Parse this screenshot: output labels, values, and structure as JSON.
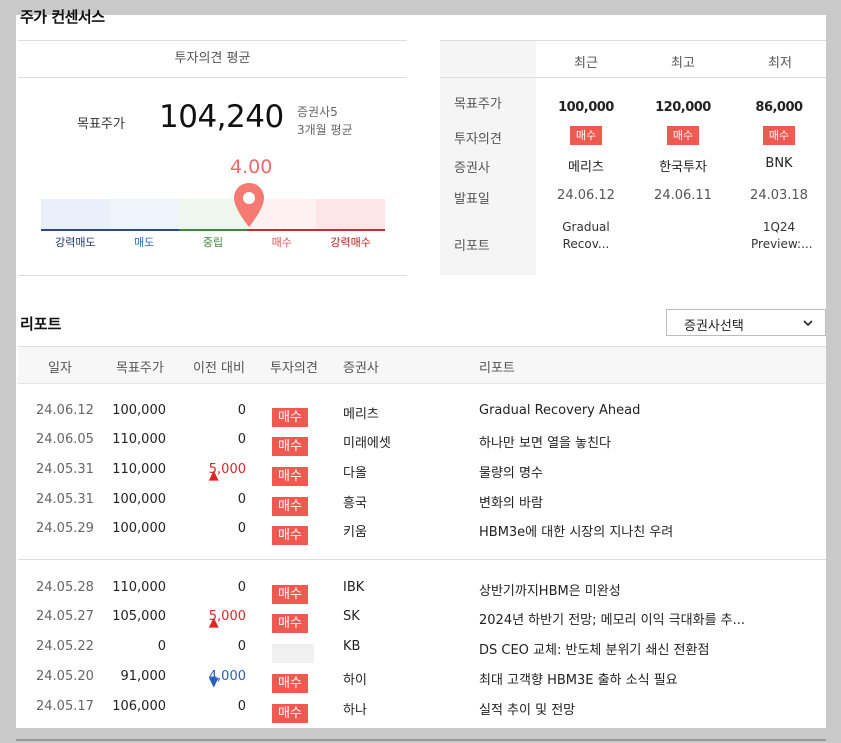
{
  "page_title": "주가 컨센서스",
  "left": {
    "header": "투자의견 평균",
    "target_label": "목표주가",
    "target_value": "104,240",
    "brokers_count": "증권사5",
    "period": "3개월 평균",
    "score": "4.00",
    "gauge_labels": [
      "강력매도",
      "매도",
      "중립",
      "매수",
      "강력매수"
    ]
  },
  "right": {
    "row_labels": [
      "목표주가",
      "투자의견",
      "증권사",
      "발표일",
      "리포트"
    ],
    "columns": [
      {
        "header": "최근",
        "target": "100,000",
        "opinion": "매수",
        "broker": "메리츠",
        "date": "24.06.12",
        "report": "Gradual Recov..."
      },
      {
        "header": "최고",
        "target": "120,000",
        "opinion": "매수",
        "broker": "한국투자",
        "date": "24.06.11",
        "report": ""
      },
      {
        "header": "최저",
        "target": "86,000",
        "opinion": "매수",
        "broker": "BNK",
        "date": "24.03.18",
        "report": "1Q24 Preview:..."
      }
    ]
  },
  "reports": {
    "title": "리포트",
    "broker_select": "증권사선택",
    "headers": {
      "date": "일자",
      "target": "목표주가",
      "change": "이전 대비",
      "opinion": "투자의견",
      "broker": "증권사",
      "report": "리포트"
    },
    "rows": [
      {
        "date": "24.06.12",
        "target": "100,000",
        "change": "0",
        "dir": "",
        "opinion": "매수",
        "broker": "메리츠",
        "title": "Gradual Recovery Ahead"
      },
      {
        "date": "24.06.05",
        "target": "110,000",
        "change": "0",
        "dir": "",
        "opinion": "매수",
        "broker": "미래에셋",
        "title": "하나만 보면 열을 놓친다"
      },
      {
        "date": "24.05.31",
        "target": "110,000",
        "change": "5,000",
        "dir": "up",
        "opinion": "매수",
        "broker": "다올",
        "title": "물량의 명수"
      },
      {
        "date": "24.05.31",
        "target": "100,000",
        "change": "0",
        "dir": "",
        "opinion": "매수",
        "broker": "흥국",
        "title": "변화의 바람"
      },
      {
        "date": "24.05.29",
        "target": "100,000",
        "change": "0",
        "dir": "",
        "opinion": "매수",
        "broker": "키움",
        "title": "HBM3e에 대한 시장의 지나친 우려"
      },
      {
        "date": "24.05.28",
        "target": "110,000",
        "change": "0",
        "dir": "",
        "opinion": "매수",
        "broker": "IBK",
        "title": "상반기까지HBM은 미완성"
      },
      {
        "date": "24.05.27",
        "target": "105,000",
        "change": "5,000",
        "dir": "up",
        "opinion": "매수",
        "broker": "SK",
        "title": "2024년 하반기 전망; 메모리 이익 극대화를 추..."
      },
      {
        "date": "24.05.22",
        "target": "0",
        "change": "0",
        "dir": "",
        "opinion": "",
        "broker": "KB",
        "title": "DS CEO 교체: 반도체 분위기 쇄신 전환점"
      },
      {
        "date": "24.05.20",
        "target": "91,000",
        "change": "4,000",
        "dir": "down",
        "opinion": "매수",
        "broker": "하이",
        "title": "최대 고객향 HBM3E 출하 소식 필요"
      },
      {
        "date": "24.05.17",
        "target": "106,000",
        "change": "0",
        "dir": "",
        "opinion": "매수",
        "broker": "하나",
        "title": "실적 추이 및 전망"
      }
    ]
  },
  "colors": {
    "buy_tag": "#f0594f",
    "up": "#e02424",
    "down": "#2a5fc0",
    "marker": "#f47a72"
  }
}
